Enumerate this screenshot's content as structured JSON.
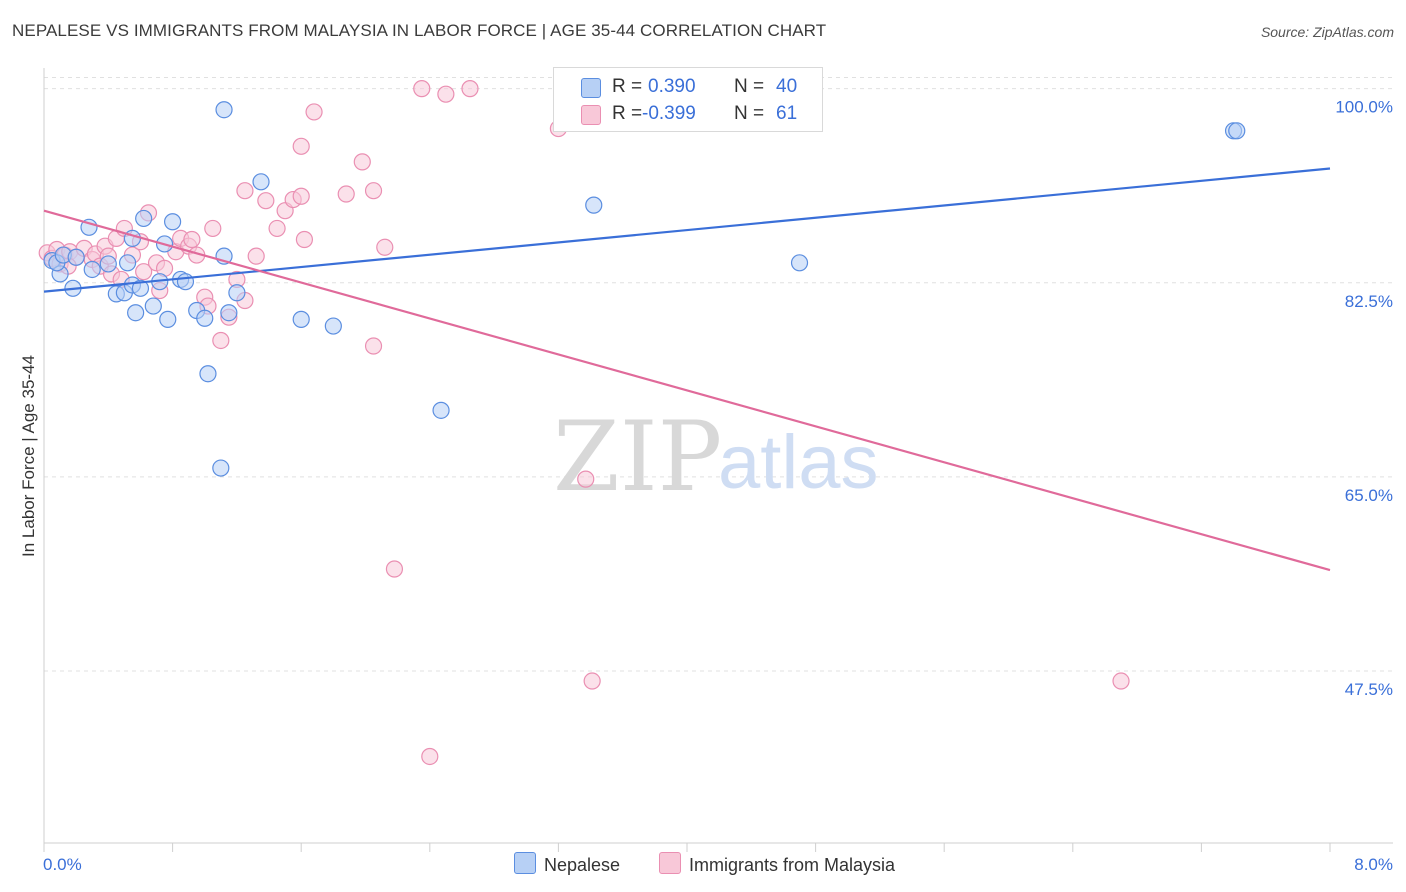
{
  "title": "NEPALESE VS IMMIGRANTS FROM MALAYSIA IN LABOR FORCE | AGE 35-44 CORRELATION CHART",
  "source": "Source: ZipAtlas.com",
  "watermark": {
    "zip": "ZIP",
    "atlas": "atlas"
  },
  "colors": {
    "blue": "#3a6fd8",
    "blue_fill": "#b7d0f5",
    "blue_stroke": "#5b8ee0",
    "pink": "#e06a9a",
    "pink_fill": "#f8c8d8",
    "pink_stroke": "#ea8fb2",
    "grid": "#e0e0e0",
    "axis_text": "#3a6fd8"
  },
  "legend": {
    "rows": [
      {
        "r_label": "R =",
        "r_value": "0.390",
        "n_label": "N =",
        "n_value": "40"
      },
      {
        "r_label": "R =",
        "r_value": "-0.399",
        "n_label": "N =",
        "n_value": "61"
      }
    ]
  },
  "bottom_legend": {
    "series1": "Nepalese",
    "series2": "Immigrants from Malaysia"
  },
  "chart_data": {
    "type": "scatter",
    "title": "NEPALESE VS IMMIGRANTS FROM MALAYSIA IN LABOR FORCE | AGE 35-44 CORRELATION CHART",
    "xlabel": "",
    "ylabel": "In Labor Force | Age 35-44",
    "xlim": [
      0,
      8
    ],
    "ylim": [
      32,
      101.5
    ],
    "x_tick_labels": [
      "0.0%",
      "8.0%"
    ],
    "y_ticks": [
      47.5,
      65.0,
      82.5,
      100.0
    ],
    "y_tick_labels": [
      "47.5%",
      "65.0%",
      "82.5%",
      "100.0%"
    ],
    "grid": true,
    "series": [
      {
        "name": "Nepalese",
        "trend": [
          [
            0,
            81.7
          ],
          [
            8,
            92.8
          ]
        ],
        "points": [
          [
            0.05,
            84.5
          ],
          [
            0.1,
            83.3
          ],
          [
            0.18,
            82.0
          ],
          [
            0.3,
            83.7
          ],
          [
            0.28,
            87.5
          ],
          [
            0.4,
            84.2
          ],
          [
            0.45,
            81.5
          ],
          [
            0.5,
            81.6
          ],
          [
            0.55,
            82.3
          ],
          [
            0.52,
            84.3
          ],
          [
            0.6,
            82.0
          ],
          [
            0.57,
            79.8
          ],
          [
            0.55,
            86.5
          ],
          [
            0.62,
            88.3
          ],
          [
            0.68,
            80.4
          ],
          [
            0.72,
            82.6
          ],
          [
            0.77,
            79.2
          ],
          [
            0.75,
            86.0
          ],
          [
            0.8,
            88.0
          ],
          [
            0.85,
            82.8
          ],
          [
            0.88,
            82.6
          ],
          [
            0.95,
            80.0
          ],
          [
            1.0,
            79.3
          ],
          [
            1.02,
            74.3
          ],
          [
            1.12,
            98.1
          ],
          [
            1.12,
            84.9
          ],
          [
            1.15,
            79.8
          ],
          [
            1.2,
            81.6
          ],
          [
            1.35,
            91.6
          ],
          [
            1.6,
            79.2
          ],
          [
            1.8,
            78.6
          ],
          [
            2.47,
            71.0
          ],
          [
            1.1,
            65.8
          ],
          [
            3.42,
            89.5
          ],
          [
            4.7,
            84.3
          ],
          [
            7.4,
            96.2
          ],
          [
            7.42,
            96.2
          ],
          [
            0.08,
            84.3
          ],
          [
            0.12,
            85.0
          ],
          [
            0.2,
            84.8
          ]
        ]
      },
      {
        "name": "Immigrants from Malaysia",
        "trend": [
          [
            0,
            89.0
          ],
          [
            8,
            56.6
          ]
        ],
        "points": [
          [
            0.02,
            85.2
          ],
          [
            0.05,
            84.7
          ],
          [
            0.08,
            85.5
          ],
          [
            0.1,
            84.2
          ],
          [
            0.13,
            85.0
          ],
          [
            0.16,
            85.3
          ],
          [
            0.2,
            84.8
          ],
          [
            0.25,
            85.6
          ],
          [
            0.3,
            84.6
          ],
          [
            0.32,
            85.1
          ],
          [
            0.35,
            84.0
          ],
          [
            0.38,
            85.8
          ],
          [
            0.4,
            84.9
          ],
          [
            0.42,
            83.3
          ],
          [
            0.45,
            86.5
          ],
          [
            0.48,
            82.8
          ],
          [
            0.5,
            87.4
          ],
          [
            0.55,
            85.0
          ],
          [
            0.6,
            86.2
          ],
          [
            0.62,
            83.5
          ],
          [
            0.65,
            88.8
          ],
          [
            0.7,
            84.3
          ],
          [
            0.72,
            81.8
          ],
          [
            0.75,
            83.8
          ],
          [
            0.82,
            85.3
          ],
          [
            0.85,
            86.5
          ],
          [
            0.9,
            85.8
          ],
          [
            0.92,
            86.4
          ],
          [
            0.95,
            85.0
          ],
          [
            1.0,
            81.2
          ],
          [
            1.02,
            80.4
          ],
          [
            1.05,
            87.4
          ],
          [
            1.1,
            77.3
          ],
          [
            1.15,
            79.4
          ],
          [
            1.2,
            82.8
          ],
          [
            1.25,
            80.9
          ],
          [
            1.32,
            84.9
          ],
          [
            1.38,
            89.9
          ],
          [
            1.45,
            87.4
          ],
          [
            1.5,
            89.0
          ],
          [
            1.55,
            90.0
          ],
          [
            1.6,
            90.3
          ],
          [
            1.62,
            86.4
          ],
          [
            1.6,
            94.8
          ],
          [
            1.68,
            97.9
          ],
          [
            1.88,
            90.5
          ],
          [
            1.98,
            93.4
          ],
          [
            2.05,
            90.8
          ],
          [
            2.12,
            85.7
          ],
          [
            2.05,
            76.8
          ],
          [
            2.18,
            56.7
          ],
          [
            2.35,
            100.0
          ],
          [
            2.5,
            99.5
          ],
          [
            2.65,
            100.0
          ],
          [
            3.2,
            96.4
          ],
          [
            3.37,
            64.8
          ],
          [
            3.41,
            46.6
          ],
          [
            2.4,
            39.8
          ],
          [
            6.7,
            46.6
          ],
          [
            1.25,
            90.8
          ],
          [
            0.15,
            84.0
          ]
        ]
      }
    ]
  }
}
